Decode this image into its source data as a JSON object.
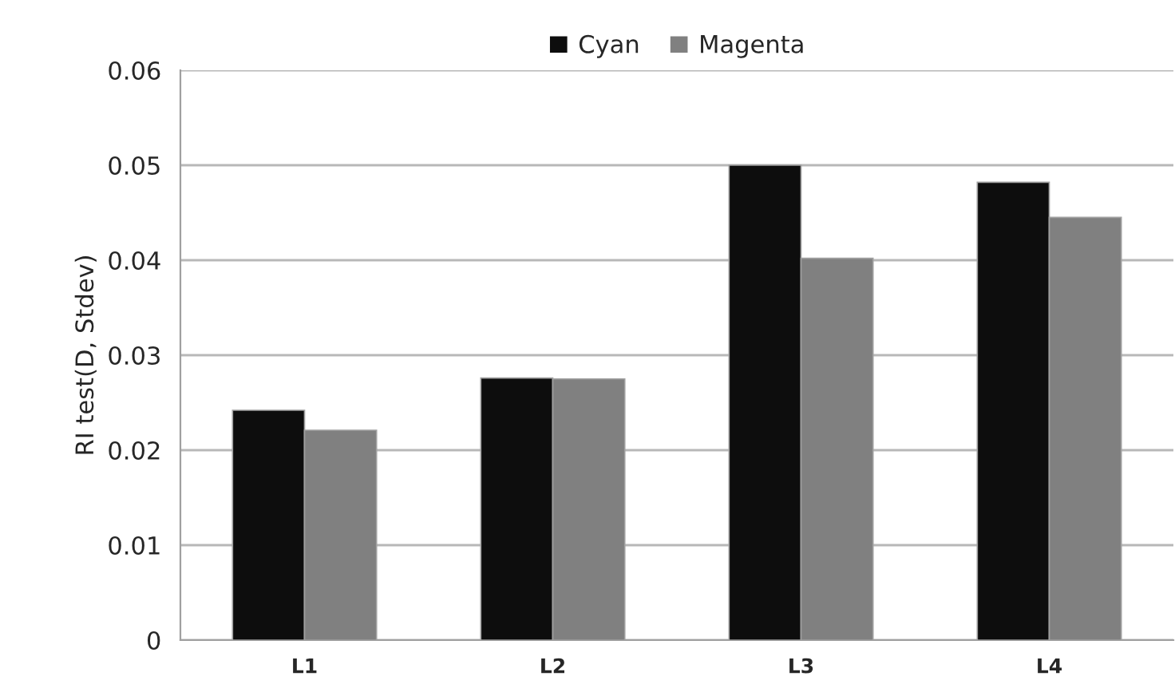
{
  "chart_data": {
    "type": "bar",
    "ylabel": "RI test(D, Stdev)",
    "categories": [
      "L1",
      "L2",
      "L3",
      "L4"
    ],
    "series": [
      {
        "name": "Cyan",
        "color": "#0d0d0d",
        "values": [
          0.0242,
          0.0276,
          0.05,
          0.0482
        ]
      },
      {
        "name": "Magenta",
        "color": "#808080",
        "values": [
          0.0221,
          0.0275,
          0.0402,
          0.0445
        ]
      }
    ],
    "ylim": [
      0,
      0.06
    ],
    "yticks": [
      0,
      0.01,
      0.02,
      0.03,
      0.04,
      0.05,
      0.06
    ],
    "grid": "y",
    "legend": "top"
  }
}
